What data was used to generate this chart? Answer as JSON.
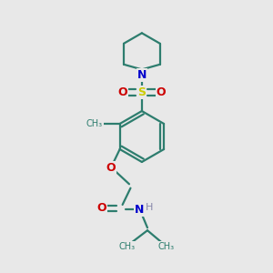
{
  "bg_color": "#e8e8e8",
  "bond_color": "#2d7d6e",
  "N_color": "#0000cc",
  "O_color": "#cc0000",
  "S_color": "#cccc00",
  "H_color": "#8888aa",
  "line_width": 1.6,
  "figsize": [
    3.0,
    3.0
  ],
  "dpi": 100,
  "xlim": [
    0,
    10
  ],
  "ylim": [
    0,
    10
  ]
}
